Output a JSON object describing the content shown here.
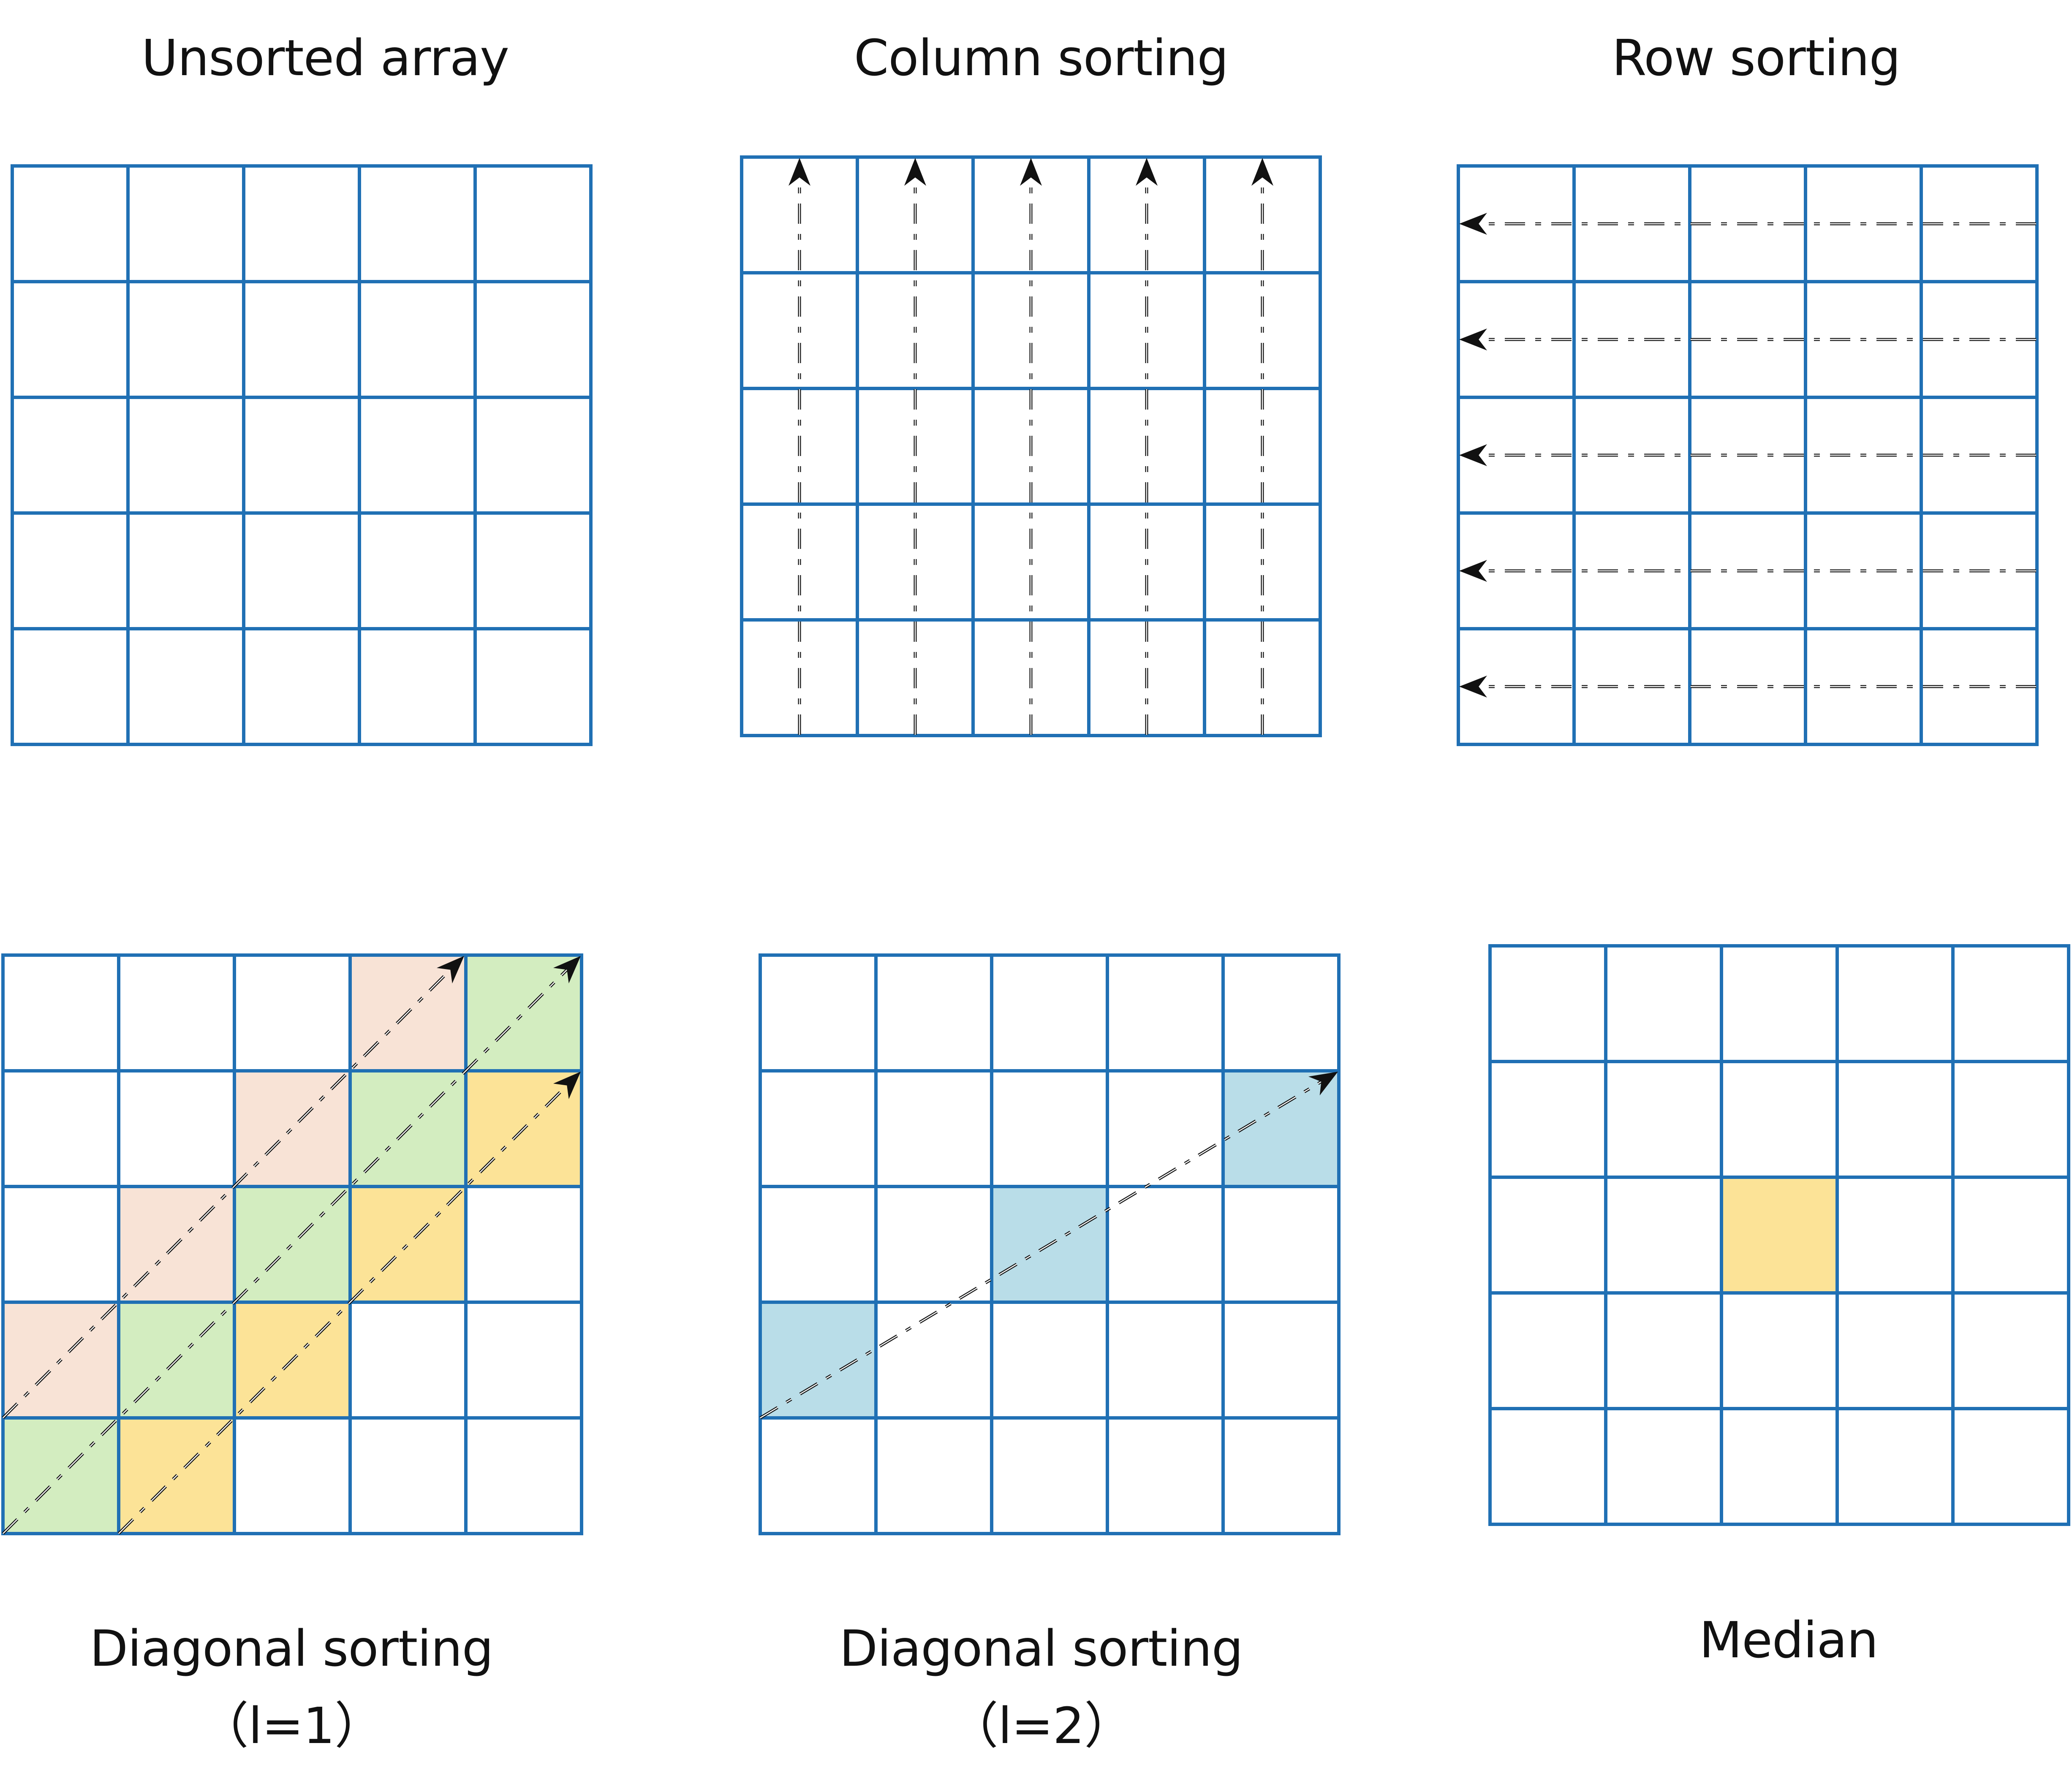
{
  "colors": {
    "grid": "#2070B4",
    "arrow": "#111111",
    "text": "#111111",
    "pink_fill": "#F8E3D6",
    "green_fill": "#D3EDC0",
    "yellow_fill": "#FCE397",
    "blue_fill": "#B9DDE8"
  },
  "panels": {
    "unsorted": {
      "title": "Unsorted array",
      "rows": 5,
      "cols": 5
    },
    "column": {
      "title": "Column sorting",
      "rows": 5,
      "cols": 5,
      "arrow_direction": "up"
    },
    "row": {
      "title": "Row sorting",
      "rows": 5,
      "cols": 5,
      "arrow_direction": "left"
    },
    "diag1": {
      "title_line1": "Diagonal sorting",
      "title_line2": "（l=1）",
      "rows": 5,
      "cols": 5,
      "highlight_groups": [
        {
          "color_key": "pink_fill",
          "cells": [
            [
              0,
              3
            ],
            [
              1,
              2
            ],
            [
              2,
              1
            ],
            [
              3,
              0
            ]
          ]
        },
        {
          "color_key": "green_fill",
          "cells": [
            [
              0,
              4
            ],
            [
              1,
              3
            ],
            [
              2,
              2
            ],
            [
              3,
              1
            ],
            [
              4,
              0
            ]
          ]
        },
        {
          "color_key": "yellow_fill",
          "cells": [
            [
              1,
              4
            ],
            [
              2,
              3
            ],
            [
              3,
              2
            ],
            [
              4,
              1
            ]
          ]
        }
      ]
    },
    "diag2": {
      "title_line1": "Diagonal sorting",
      "title_line2": "（l=2）",
      "rows": 5,
      "cols": 5,
      "highlight_groups": [
        {
          "color_key": "blue_fill",
          "cells": [
            [
              3,
              0
            ],
            [
              2,
              2
            ],
            [
              1,
              4
            ]
          ]
        }
      ]
    },
    "median": {
      "title": "Median",
      "rows": 5,
      "cols": 5,
      "highlight_groups": [
        {
          "color_key": "yellow_fill",
          "cells": [
            [
              2,
              2
            ]
          ]
        }
      ]
    }
  }
}
